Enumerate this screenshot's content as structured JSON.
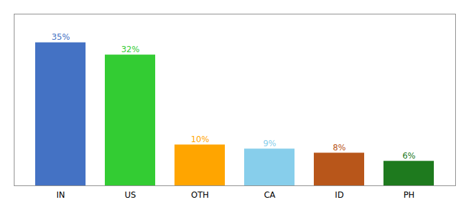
{
  "chart_data": {
    "type": "bar",
    "categories": [
      "IN",
      "US",
      "OTH",
      "CA",
      "ID",
      "PH"
    ],
    "values": [
      35,
      32,
      10,
      9,
      8,
      6
    ],
    "value_labels": [
      "35%",
      "32%",
      "10%",
      "9%",
      "8%",
      "6%"
    ],
    "colors": [
      "#4472C4",
      "#33CC33",
      "#FFA500",
      "#87CEEB",
      "#B8561A",
      "#1E7A1E"
    ],
    "ylim": [
      0,
      42
    ],
    "data_labels": true,
    "tick_labels": "x"
  }
}
